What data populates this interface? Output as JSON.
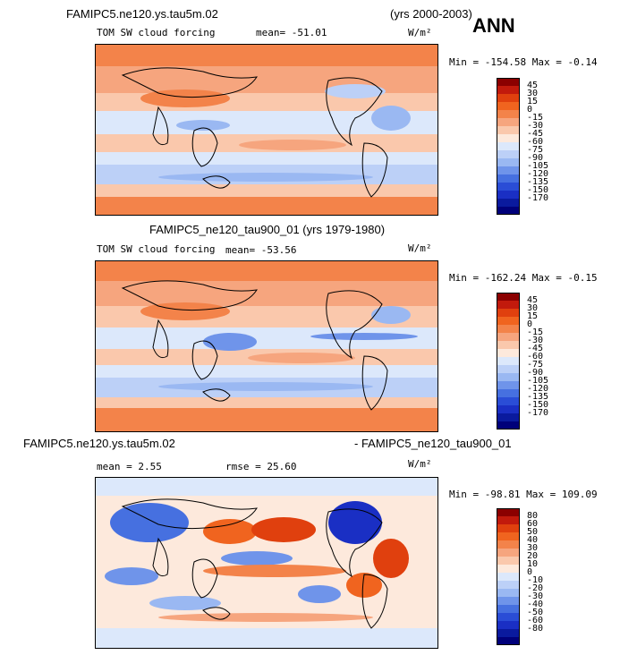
{
  "header": {
    "case_title": "FAMIPC5.ne120.ys.tau5m.02",
    "years": "(yrs 2000-2003)",
    "season": "ANN"
  },
  "panels": [
    {
      "id": "top",
      "title": "FAMIPC5.ne120.ys.tau5m.02",
      "variable": "TOM SW cloud forcing",
      "mean_label": "mean= -51.01",
      "units": "W/m²",
      "minmax_label": "Min = -154.58 Max =  -0.14"
    },
    {
      "id": "middle",
      "title": "FAMIPC5_ne120_tau900_01 (yrs 1979-1980)",
      "variable": "TOM SW cloud forcing",
      "mean_label": "mean= -53.56",
      "units": "W/m²",
      "minmax_label": "Min = -162.24 Max =  -0.15"
    },
    {
      "id": "bottom",
      "title_left": "FAMIPC5.ne120.ys.tau5m.02",
      "title_right": "- FAMIPC5_ne120_tau900_01",
      "mean_label": "mean =   2.55",
      "rmse_label": "rmse =  25.60",
      "units": "W/m²",
      "minmax_label": "Min = -98.81 Max = 109.09"
    }
  ],
  "chart_data": [
    {
      "type": "heatmap",
      "title": "TOM SW cloud forcing (FAMIPC5.ne120.ys.tau5m.02, yrs 2000-2003, ANN)",
      "units": "W/m2",
      "mean": -51.01,
      "min": -154.58,
      "max": -0.14,
      "colorbar_levels": [
        "45",
        "30",
        "15",
        "0",
        "-15",
        "-30",
        "-45",
        "-60",
        "-75",
        "-90",
        "-105",
        "-120",
        "-135",
        "-150",
        "-170"
      ],
      "colors": [
        "#8b0000",
        "#c21a0c",
        "#e0400e",
        "#f0641f",
        "#f3834a",
        "#f6a57e",
        "#fac8ac",
        "#fde9dc",
        "#dce8fb",
        "#bcd0f7",
        "#9ab8f2",
        "#6f94ea",
        "#4670e0",
        "#2a4dd6",
        "#1a2fc4",
        "#0a1a9e",
        "#00007a"
      ]
    },
    {
      "type": "heatmap",
      "title": "TOM SW cloud forcing (FAMIPC5_ne120_tau900_01, yrs 1979-1980)",
      "units": "W/m2",
      "mean": -53.56,
      "min": -162.24,
      "max": -0.15,
      "colorbar_levels": [
        "45",
        "30",
        "15",
        "0",
        "-15",
        "-30",
        "-45",
        "-60",
        "-75",
        "-90",
        "-105",
        "-120",
        "-135",
        "-150",
        "-170"
      ],
      "colors": [
        "#8b0000",
        "#c21a0c",
        "#e0400e",
        "#f0641f",
        "#f3834a",
        "#f6a57e",
        "#fac8ac",
        "#fde9dc",
        "#dce8fb",
        "#bcd0f7",
        "#9ab8f2",
        "#6f94ea",
        "#4670e0",
        "#2a4dd6",
        "#1a2fc4",
        "#0a1a9e",
        "#00007a"
      ]
    },
    {
      "type": "heatmap",
      "title": "FAMIPC5.ne120.ys.tau5m.02 - FAMIPC5_ne120_tau900_01",
      "units": "W/m2",
      "mean": 2.55,
      "rmse": 25.6,
      "min": -98.81,
      "max": 109.09,
      "colorbar_levels": [
        "80",
        "60",
        "50",
        "40",
        "30",
        "20",
        "10",
        "0",
        "-10",
        "-20",
        "-30",
        "-40",
        "-50",
        "-60",
        "-80"
      ],
      "colors": [
        "#8b0000",
        "#c21a0c",
        "#e0400e",
        "#f0641f",
        "#f3834a",
        "#f6a57e",
        "#fac8ac",
        "#fde9dc",
        "#dce8fb",
        "#bcd0f7",
        "#9ab8f2",
        "#6f94ea",
        "#4670e0",
        "#2a4dd6",
        "#1a2fc4",
        "#0a1a9e",
        "#00007a"
      ]
    }
  ]
}
